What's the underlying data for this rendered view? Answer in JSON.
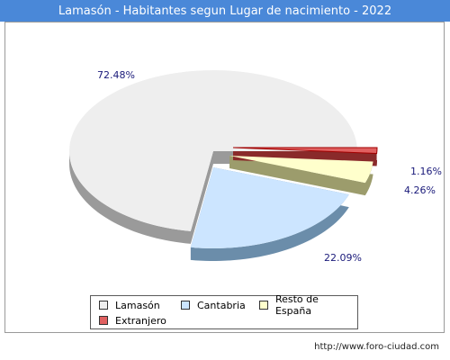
{
  "chart_data": {
    "type": "pie",
    "title": "Lamasón - Habitantes segun Lugar de nacimiento - 2022",
    "slices": [
      {
        "label": "Lamasón",
        "value": 72.48,
        "pct_label": "72.48%",
        "color": "#eeeeee",
        "side_color": "#9a9a9a"
      },
      {
        "label": "Cantabria",
        "value": 22.09,
        "pct_label": "22.09%",
        "color": "#cce5ff",
        "side_color": "#6b8daa"
      },
      {
        "label": "Resto de España",
        "value": 4.26,
        "pct_label": "4.26%",
        "color": "#ffffcc",
        "side_color": "#9c9c6c"
      },
      {
        "label": "Extranjero",
        "value": 1.16,
        "pct_label": "1.16%",
        "color": "#e06060",
        "side_color": "#8a2a2a"
      }
    ],
    "legend_position": "bottom"
  },
  "footer": {
    "url": "http://www.foro-ciudad.com"
  }
}
